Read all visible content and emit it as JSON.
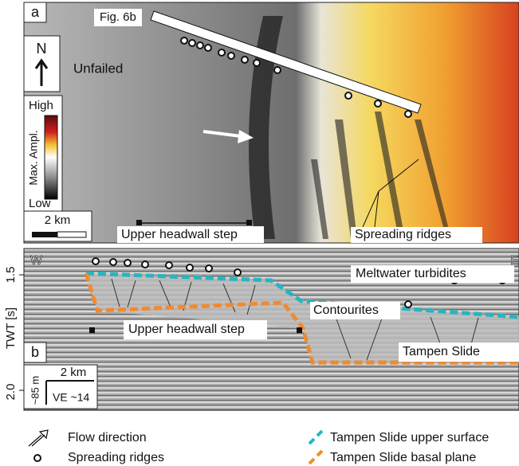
{
  "panel_a": {
    "label": "a",
    "fig_ref": "Fig. 6b",
    "north": "N",
    "unfailed": "Unfailed",
    "colorbar": {
      "high": "High",
      "title": "Max. Ampl.",
      "low": "Low"
    },
    "scale": "2 km",
    "headwall": "Upper headwall step",
    "ridges": "Spreading ridges"
  },
  "panel_b": {
    "label": "b",
    "west": "W",
    "east": "E",
    "meltwater": "Meltwater turbidites",
    "contourites": "Contourites",
    "headwall": "Upper headwall step",
    "slide": "Tampen Slide",
    "scale": "2 km",
    "vertical": "~85 m",
    "ve": "VE ~14",
    "axis": {
      "title": "TWT [s]",
      "top": "1.5",
      "bottom": "2.0"
    }
  },
  "legend": {
    "flow": "Flow direction",
    "ridges": "Spreading ridges",
    "upper": "Tampen Slide upper surface",
    "basal": "Tampen Slide basal plane"
  }
}
